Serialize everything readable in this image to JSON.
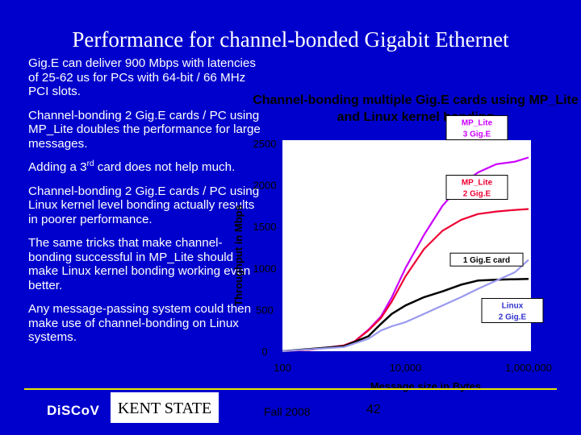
{
  "slide": {
    "title": "Performance for channel-bonded Gigabit Ethernet",
    "bullets": [
      "Gig.E can deliver 900 Mbps with latencies of 25-62 us for PCs with 64-bit / 66 MHz PCI slots.",
      "Channel-bonding 2 Gig.E cards / PC using MP_Lite doubles the performance for  large messages.",
      "Adding a 3",
      "rd",
      " card does not help much.",
      "Channel-bonding 2 Gig.E cards / PC using Linux kernel level bonding actually results in poorer performance.",
      "The same tricks that make channel-bonding successful in MP_Lite should make Linux kernel bonding working even better.",
      "Any message-passing system could then make use of channel-bonding on Linux systems."
    ],
    "footer": {
      "logo1": "DiSCoV",
      "logo2": "KENT STATE",
      "date": "Fall 2008",
      "page": "42"
    },
    "colors": {
      "background": "#0000cc",
      "footer_line": "#e6e600"
    }
  },
  "chart_data": {
    "type": "line",
    "title": "Channel-bonding multiple Gig.E cards using MP_Lite and Linux kernel bonding",
    "xlabel": "Message size in Bytes",
    "ylabel": "Throughput in Mbps",
    "x_scale": "log",
    "xlim": [
      100,
      1000000
    ],
    "ylim": [
      0,
      2500
    ],
    "x_ticks": [
      "100",
      "10,000",
      "1,000,000"
    ],
    "y_ticks": [
      "0",
      "500",
      "1000",
      "1500",
      "2000",
      "2500"
    ],
    "series": [
      {
        "name": "MP_Lite 3 Gig.E",
        "color": "#cc00ff",
        "x": [
          100,
          300,
          1000,
          1500,
          2500,
          4000,
          6000,
          10000,
          20000,
          40000,
          80000,
          150000,
          300000,
          600000,
          1000000
        ],
        "y": [
          0,
          20,
          70,
          120,
          260,
          420,
          650,
          1000,
          1400,
          1750,
          2000,
          2150,
          2250,
          2280,
          2330
        ]
      },
      {
        "name": "MP_Lite 2 Gig.E",
        "color": "#ee0033",
        "x": [
          100,
          300,
          1000,
          1500,
          2500,
          4000,
          6000,
          10000,
          20000,
          40000,
          80000,
          150000,
          300000,
          600000,
          1000000
        ],
        "y": [
          0,
          20,
          70,
          120,
          250,
          400,
          600,
          900,
          1230,
          1450,
          1580,
          1650,
          1680,
          1700,
          1710
        ]
      },
      {
        "name": "1 Gig.E card",
        "color": "#000000",
        "x": [
          100,
          1000,
          2500,
          4000,
          6000,
          10000,
          20000,
          40000,
          80000,
          150000,
          300000,
          1000000
        ],
        "y": [
          0,
          60,
          180,
          330,
          450,
          550,
          650,
          720,
          800,
          850,
          860,
          870
        ]
      },
      {
        "name": "Linux 2 Gig.E",
        "color": "#9999ee",
        "x": [
          100,
          1000,
          2500,
          4000,
          6000,
          10000,
          20000,
          40000,
          80000,
          150000,
          300000,
          600000,
          1000000
        ],
        "y": [
          0,
          50,
          150,
          250,
          300,
          350,
          450,
          550,
          650,
          750,
          850,
          950,
          1100
        ]
      }
    ],
    "labels": [
      {
        "text": [
          "MP_Lite",
          "3 Gig.E"
        ],
        "series": 0
      },
      {
        "text": [
          "MP_Lite",
          "2 Gig.E"
        ],
        "series": 1
      },
      {
        "text": [
          "1 Gig.E card"
        ],
        "series": 2
      },
      {
        "text": [
          "Linux",
          "2 Gig.E"
        ],
        "series": 3
      }
    ],
    "grid": false,
    "legend": "inline-labels"
  }
}
